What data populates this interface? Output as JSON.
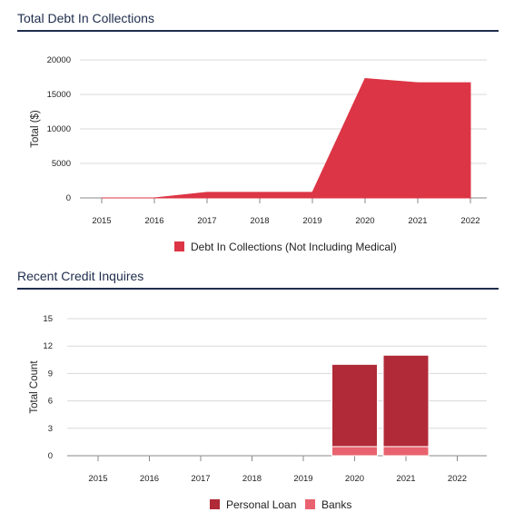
{
  "charts": {
    "debt": {
      "title": "Total Debt In Collections"
    },
    "inquiries": {
      "title": "Recent Credit Inquires"
    }
  },
  "chart_data": [
    {
      "type": "area",
      "title": "Total Debt In Collections",
      "xlabel": "",
      "ylabel": "Total ($)",
      "x": [
        "2015",
        "2016",
        "2017",
        "2018",
        "2019",
        "2020",
        "2021",
        "2022"
      ],
      "ylim": [
        0,
        20000
      ],
      "yticks": [
        0,
        5000,
        10000,
        15000,
        20000
      ],
      "grid": true,
      "legend_position": "bottom",
      "series": [
        {
          "name": "Debt In Collections (Not Including Medical)",
          "color": "#dc3545",
          "values": [
            0,
            0,
            800,
            800,
            800,
            17300,
            16700,
            16700
          ]
        }
      ]
    },
    {
      "type": "bar",
      "stacked": true,
      "title": "Recent Credit Inquires",
      "xlabel": "",
      "ylabel": "Total Count",
      "categories": [
        "2015",
        "2016",
        "2017",
        "2018",
        "2019",
        "2020",
        "2021",
        "2022"
      ],
      "ylim": [
        0,
        15
      ],
      "yticks": [
        0,
        3,
        6,
        9,
        12,
        15
      ],
      "grid": true,
      "legend_position": "bottom",
      "series": [
        {
          "name": "Banks",
          "color": "#e8636f",
          "values": [
            0,
            0,
            0,
            0,
            0,
            1,
            1,
            0
          ]
        },
        {
          "name": "Personal Loan",
          "color": "#b02a37",
          "values": [
            0,
            0,
            0,
            0,
            0,
            9,
            10,
            0
          ]
        }
      ]
    }
  ]
}
